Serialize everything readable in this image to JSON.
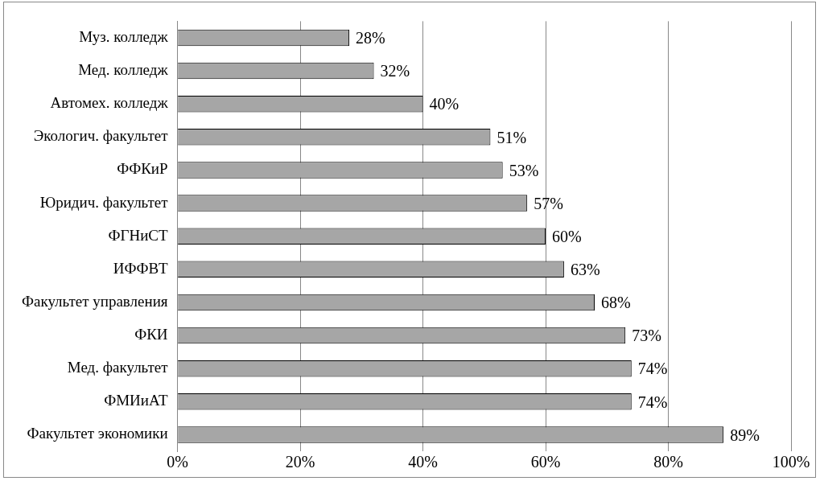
{
  "chart_data": {
    "type": "bar",
    "orientation": "horizontal",
    "categories": [
      "Муз. колледж",
      "Мед. колледж",
      "Автомех. колледж",
      "Экологич. факультет",
      "ФФКиР",
      "Юридич. факультет",
      "ФГНиСТ",
      "ИФФВТ",
      "Факультет управления",
      "ФКИ",
      "Мед. факультет",
      "ФМИиАТ",
      "Факультет экономики"
    ],
    "values": [
      28,
      32,
      40,
      51,
      53,
      57,
      60,
      63,
      68,
      73,
      74,
      74,
      89
    ],
    "value_labels": [
      "28%",
      "32%",
      "40%",
      "51%",
      "53%",
      "57%",
      "60%",
      "63%",
      "68%",
      "73%",
      "74%",
      "74%",
      "89%"
    ],
    "color": "#a6a6a6",
    "xlim": [
      0,
      100
    ],
    "xticks": [
      {
        "value": 0,
        "label": "0%"
      },
      {
        "value": 20,
        "label": "20%"
      },
      {
        "value": 40,
        "label": "40%"
      },
      {
        "value": 60,
        "label": "60%"
      },
      {
        "value": 80,
        "label": "80%"
      },
      {
        "value": 100,
        "label": "100%"
      }
    ],
    "grid": "x",
    "legend": false
  }
}
